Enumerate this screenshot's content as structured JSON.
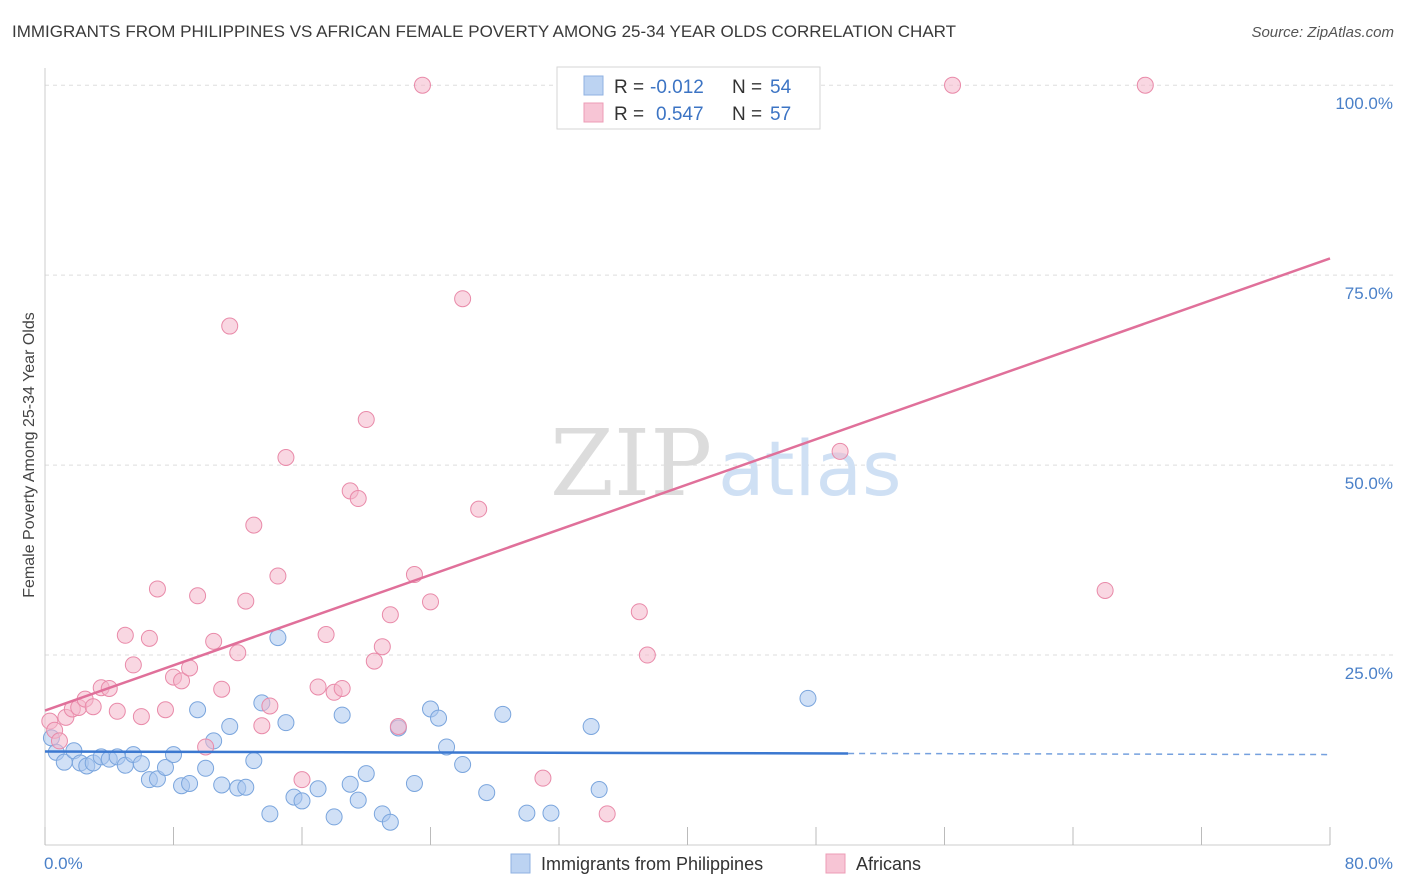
{
  "title": "IMMIGRANTS FROM PHILIPPINES VS AFRICAN FEMALE POVERTY AMONG 25-34 YEAR OLDS CORRELATION CHART",
  "source": "Source: ZipAtlas.com",
  "watermark": {
    "zip": "ZIP",
    "atlas": "atlas"
  },
  "chart_data": {
    "type": "scatter",
    "ylabel": "Female Poverty Among 25-34 Year Olds",
    "xlim": [
      0,
      80
    ],
    "ylim": [
      0,
      102
    ],
    "x_tick_labels": {
      "min": "0.0%",
      "max": "80.0%"
    },
    "y_ticks": [
      {
        "value": 25,
        "label": "25.0%"
      },
      {
        "value": 50,
        "label": "50.0%"
      },
      {
        "value": 75,
        "label": "75.0%"
      },
      {
        "value": 100,
        "label": "100.0%"
      }
    ],
    "grid": true,
    "legend_position": "top-center",
    "stats": [
      {
        "r_label": "R =",
        "r": "-0.012",
        "n_label": "N =",
        "n": "54"
      },
      {
        "r_label": "R =",
        "r": "0.547",
        "n_label": "N =",
        "n": "57"
      }
    ],
    "series": [
      {
        "name": "Immigrants from Philippines",
        "color": "#a9c6ef",
        "stroke": "#7aa5dd",
        "line_color": "#3b78d0",
        "trend": {
          "x0": 0,
          "y0": 12.3,
          "x1": 80,
          "y1": 11.9,
          "solid_until": 50
        },
        "points": [
          [
            0.4,
            14.1
          ],
          [
            0.7,
            12.2
          ],
          [
            1.2,
            10.9
          ],
          [
            1.8,
            12.4
          ],
          [
            2.2,
            10.8
          ],
          [
            2.6,
            10.4
          ],
          [
            3.0,
            10.8
          ],
          [
            3.5,
            11.6
          ],
          [
            4.0,
            11.3
          ],
          [
            4.5,
            11.6
          ],
          [
            5.0,
            10.5
          ],
          [
            5.5,
            11.9
          ],
          [
            6.0,
            10.7
          ],
          [
            6.5,
            8.6
          ],
          [
            7.0,
            8.7
          ],
          [
            7.5,
            10.2
          ],
          [
            8.0,
            11.9
          ],
          [
            8.5,
            7.8
          ],
          [
            9.0,
            8.1
          ],
          [
            9.5,
            17.8
          ],
          [
            10.0,
            10.1
          ],
          [
            10.5,
            13.7
          ],
          [
            11.0,
            7.9
          ],
          [
            11.5,
            15.6
          ],
          [
            12.0,
            7.5
          ],
          [
            12.5,
            7.6
          ],
          [
            13.0,
            11.1
          ],
          [
            13.5,
            18.7
          ],
          [
            14.0,
            4.1
          ],
          [
            14.5,
            27.3
          ],
          [
            15.0,
            16.1
          ],
          [
            15.5,
            6.3
          ],
          [
            16.0,
            5.8
          ],
          [
            17.0,
            7.4
          ],
          [
            18.0,
            3.7
          ],
          [
            18.5,
            17.1
          ],
          [
            19.0,
            8.0
          ],
          [
            19.5,
            5.9
          ],
          [
            20.0,
            9.4
          ],
          [
            21.0,
            4.1
          ],
          [
            21.5,
            3.0
          ],
          [
            22.0,
            15.4
          ],
          [
            23.0,
            8.1
          ],
          [
            24.0,
            17.9
          ],
          [
            24.5,
            16.7
          ],
          [
            25.0,
            12.9
          ],
          [
            26.0,
            10.6
          ],
          [
            27.5,
            6.9
          ],
          [
            28.5,
            17.2
          ],
          [
            30.0,
            4.2
          ],
          [
            31.5,
            4.2
          ],
          [
            34.0,
            15.6
          ],
          [
            34.5,
            7.3
          ],
          [
            47.5,
            19.3
          ]
        ]
      },
      {
        "name": "Africans",
        "color": "#f4b6ca",
        "stroke": "#e98aa9",
        "line_color": "#e0709a",
        "trend": {
          "x0": 0,
          "y0": 17.7,
          "x1": 80,
          "y1": 77.2
        },
        "points": [
          [
            0.3,
            16.3
          ],
          [
            0.6,
            15.1
          ],
          [
            0.9,
            13.7
          ],
          [
            1.3,
            16.8
          ],
          [
            1.7,
            17.9
          ],
          [
            2.1,
            18.1
          ],
          [
            2.5,
            19.2
          ],
          [
            3.0,
            18.2
          ],
          [
            3.5,
            20.7
          ],
          [
            4.0,
            20.6
          ],
          [
            4.5,
            17.6
          ],
          [
            5.0,
            27.6
          ],
          [
            5.5,
            23.7
          ],
          [
            6.0,
            16.9
          ],
          [
            6.5,
            27.2
          ],
          [
            7.0,
            33.7
          ],
          [
            7.5,
            17.8
          ],
          [
            8.0,
            22.1
          ],
          [
            8.5,
            21.6
          ],
          [
            9.0,
            23.3
          ],
          [
            9.5,
            32.8
          ],
          [
            10.0,
            12.9
          ],
          [
            10.5,
            26.8
          ],
          [
            11.0,
            20.5
          ],
          [
            11.5,
            68.3
          ],
          [
            12.0,
            25.3
          ],
          [
            12.5,
            32.1
          ],
          [
            13.0,
            42.1
          ],
          [
            13.5,
            15.7
          ],
          [
            14.0,
            18.3
          ],
          [
            14.5,
            35.4
          ],
          [
            15.0,
            51.0
          ],
          [
            16.0,
            8.6
          ],
          [
            17.0,
            20.8
          ],
          [
            17.5,
            27.7
          ],
          [
            18.0,
            20.1
          ],
          [
            18.5,
            20.6
          ],
          [
            19.0,
            46.6
          ],
          [
            19.5,
            45.6
          ],
          [
            20.0,
            56.0
          ],
          [
            20.5,
            24.2
          ],
          [
            21.0,
            26.1
          ],
          [
            21.5,
            30.3
          ],
          [
            22.0,
            15.6
          ],
          [
            23.0,
            35.6
          ],
          [
            23.5,
            100
          ],
          [
            24.0,
            32.0
          ],
          [
            26.0,
            71.9
          ],
          [
            27.0,
            44.2
          ],
          [
            31.0,
            8.8
          ],
          [
            35.0,
            4.1
          ],
          [
            37.0,
            30.7
          ],
          [
            37.5,
            25.0
          ],
          [
            49.5,
            51.8
          ],
          [
            56.5,
            100
          ],
          [
            66.0,
            33.5
          ],
          [
            68.5,
            100
          ]
        ]
      }
    ]
  }
}
